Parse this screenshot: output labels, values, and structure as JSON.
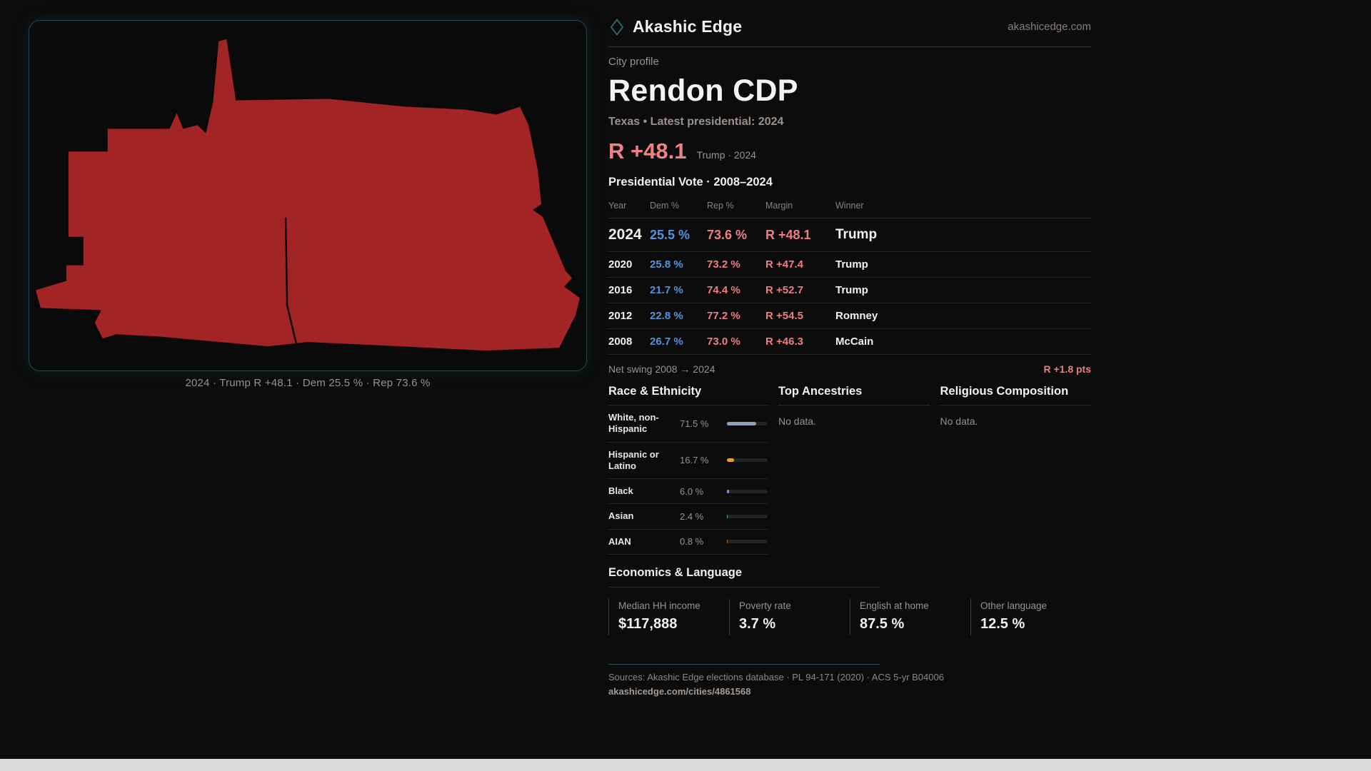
{
  "brand": {
    "name": "Akashic Edge",
    "domain": "akashicedge.com"
  },
  "profile": {
    "kicker": "City profile",
    "title": "Rendon CDP",
    "subtitle": "Texas • Latest presidential: 2024",
    "headline_margin": "R +48.1",
    "headline_context": "Trump · 2024"
  },
  "map": {
    "caption": "2024 · Trump R +48.1 · Dem 25.5 % · Rep 73.6 %",
    "fill_color": "#a32424"
  },
  "vote_table": {
    "title": "Presidential Vote · 2008–2024",
    "columns": [
      "Year",
      "Dem %",
      "Rep %",
      "Margin",
      "Winner"
    ],
    "rows": [
      {
        "year": "2024",
        "dem": "25.5 %",
        "rep": "73.6 %",
        "margin": "R +48.1",
        "winner": "Trump",
        "big": true
      },
      {
        "year": "2020",
        "dem": "25.8 %",
        "rep": "73.2 %",
        "margin": "R +47.4",
        "winner": "Trump",
        "big": false
      },
      {
        "year": "2016",
        "dem": "21.7 %",
        "rep": "74.4 %",
        "margin": "R +52.7",
        "winner": "Trump",
        "big": false
      },
      {
        "year": "2012",
        "dem": "22.8 %",
        "rep": "77.2 %",
        "margin": "R +54.5",
        "winner": "Romney",
        "big": false
      },
      {
        "year": "2008",
        "dem": "26.7 %",
        "rep": "73.0 %",
        "margin": "R +46.3",
        "winner": "McCain",
        "big": false
      }
    ]
  },
  "net_swing": {
    "label": "Net swing 2008 → 2024",
    "value": "R +1.8 pts"
  },
  "race": {
    "title": "Race & Ethnicity",
    "rows": [
      {
        "label": "White, non-Hispanic",
        "value": "71.5 %",
        "pct": 71.5,
        "color": "#8ea4bd"
      },
      {
        "label": "Hispanic or Latino",
        "value": "16.7 %",
        "pct": 16.7,
        "color": "#e0a32e"
      },
      {
        "label": "Black",
        "value": "6.0 %",
        "pct": 6.0,
        "color": "#9184d8"
      },
      {
        "label": "Asian",
        "value": "2.4 %",
        "pct": 2.4,
        "color": "#27b387"
      },
      {
        "label": "AIAN",
        "value": "0.8 %",
        "pct": 0.8,
        "color": "#b96a28"
      }
    ]
  },
  "ancestries": {
    "title": "Top Ancestries",
    "empty": "No data."
  },
  "religion": {
    "title": "Religious Composition",
    "empty": "No data."
  },
  "economics": {
    "title": "Economics & Language",
    "stats": [
      {
        "label": "Median HH income",
        "value": "$117,888"
      },
      {
        "label": "Poverty rate",
        "value": "3.7 %"
      },
      {
        "label": "English at home",
        "value": "87.5 %"
      },
      {
        "label": "Other language",
        "value": "12.5 %"
      }
    ]
  },
  "footer": {
    "sources": "Sources: Akashic Edge elections database · PL 94-171 (2020) · ACS 5-yr B04006",
    "permalink": "akashicedge.com/cities/4861568"
  },
  "colors": {
    "accent_rep": "#ee7e7e",
    "accent_dem": "#5094e0",
    "panel_border": "#1d4a54"
  }
}
